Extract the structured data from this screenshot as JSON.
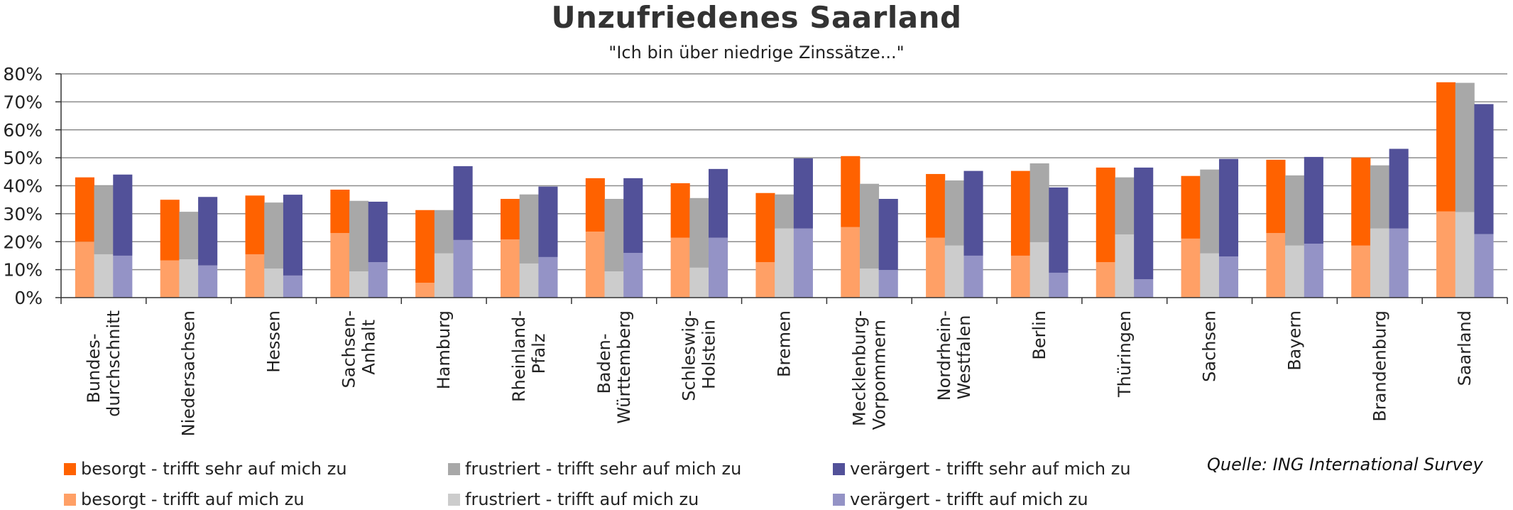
{
  "title": "Unzufriedenes Saarland",
  "subtitle": "\"Ich bin über niedrige Zinssätze...\"",
  "source": "Quelle: ING International Survey",
  "chart_data": {
    "type": "bar",
    "subtype": "clustered-stacked",
    "title": "Unzufriedenes Saarland",
    "subtitle": "\"Ich bin über niedrige Zinssätze...\"",
    "xlabel": "",
    "ylabel": "",
    "ylim": [
      0,
      80
    ],
    "yticks": [
      "0%",
      "10%",
      "20%",
      "30%",
      "40%",
      "50%",
      "60%",
      "70%",
      "80%"
    ],
    "ytick_values": [
      0,
      10,
      20,
      30,
      40,
      50,
      60,
      70,
      80
    ],
    "grid": true,
    "legend_position": "bottom",
    "categories": [
      "Bundes-\ndurchschnitt",
      "Niedersachsen",
      "Hessen",
      "Sachsen-\nAnhalt",
      "Hamburg",
      "Rheinland-\nPfalz",
      "Baden-\nWürttemberg",
      "Schleswig-\nHolstein",
      "Bremen",
      "Mecklenburg-\nVorpommern",
      "Nordrhein-\nWestfalen",
      "Berlin",
      "Thüringen",
      "Sachsen",
      "Bayern",
      "Brandenburg",
      "Saarland"
    ],
    "stacks": [
      {
        "name": "besorgt",
        "bottom": "besorgt_auf",
        "top": "besorgt_sehr"
      },
      {
        "name": "frustriert",
        "bottom": "frustriert_auf",
        "top": "frustriert_sehr"
      },
      {
        "name": "verärgert",
        "bottom": "veraergert_auf",
        "top": "veraergert_sehr"
      }
    ],
    "series": [
      {
        "key": "besorgt_sehr",
        "name": "besorgt - trifft sehr auf mich zu",
        "color": "#FF6200",
        "values": [
          23,
          21.7,
          21,
          15.5,
          26,
          14.5,
          19.1,
          19.5,
          24.7,
          25.4,
          22.8,
          30.3,
          33.8,
          22.4,
          26.2,
          31.5,
          46.2
        ]
      },
      {
        "key": "besorgt_auf",
        "name": "besorgt - trifft auf mich zu",
        "color": "#FFA066",
        "values": [
          20,
          13.3,
          15.5,
          23.1,
          5.3,
          20.8,
          23.6,
          21.4,
          12.7,
          25.2,
          21.4,
          15,
          12.7,
          21.1,
          23.1,
          18.6,
          30.8
        ]
      },
      {
        "key": "frustriert_sehr",
        "name": "frustriert - trifft sehr auf mich zu",
        "color": "#A8A8A8",
        "values": [
          24.5,
          17,
          23.6,
          25.2,
          15.5,
          24.7,
          25.9,
          24.9,
          12.2,
          30.3,
          23.3,
          28.2,
          20.4,
          30,
          25.1,
          22.6,
          46.2
        ]
      },
      {
        "key": "frustriert_auf",
        "name": "frustriert - trifft auf mich zu",
        "color": "#CCCCCC",
        "values": [
          15.5,
          13.7,
          10.4,
          9.4,
          15.8,
          12.2,
          9.4,
          10.7,
          24.7,
          10.4,
          18.6,
          19.8,
          22.6,
          15.8,
          18.6,
          24.7,
          30.6
        ]
      },
      {
        "key": "veraergert_sehr",
        "name": "verärgert - trifft sehr auf mich zu",
        "color": "#525199",
        "values": [
          29,
          24.5,
          28.9,
          21.6,
          26.4,
          25.2,
          26.7,
          24.6,
          25.1,
          25.4,
          30.3,
          30.5,
          39.9,
          34.9,
          31,
          28.5,
          46.5
        ]
      },
      {
        "key": "veraergert_auf",
        "name": "verärgert - trifft auf mich zu",
        "color": "#9493C6",
        "values": [
          15,
          11.5,
          7.9,
          12.7,
          20.6,
          14.5,
          16,
          21.4,
          24.7,
          9.9,
          15,
          8.9,
          6.6,
          14.7,
          19.3,
          24.7,
          22.7
        ]
      }
    ]
  },
  "legend": [
    {
      "label": "besorgt - trifft sehr auf mich zu",
      "color": "#FF6200"
    },
    {
      "label": "frustriert - trifft sehr auf mich zu",
      "color": "#A8A8A8"
    },
    {
      "label": "verärgert - trifft sehr auf mich zu",
      "color": "#525199"
    },
    {
      "label": "besorgt - trifft auf mich zu",
      "color": "#FFA066"
    },
    {
      "label": "frustriert - trifft auf mich zu",
      "color": "#CCCCCC"
    },
    {
      "label": "verärgert - trifft auf mich zu",
      "color": "#9493C6"
    }
  ],
  "colors": {
    "gridline": "#8C8C8C",
    "axis": "#333333",
    "text": "#222222"
  }
}
